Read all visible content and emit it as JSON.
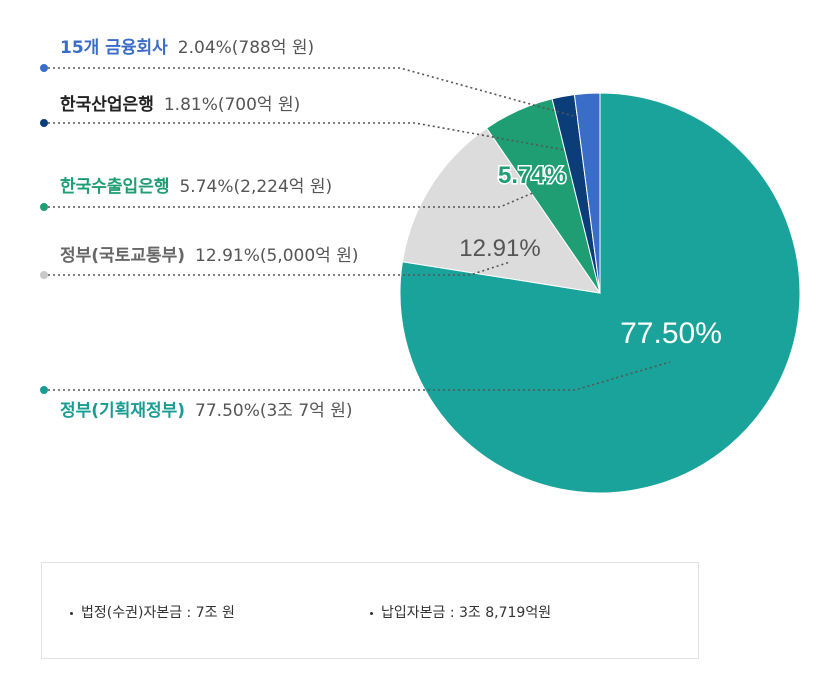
{
  "chart_data": {
    "type": "pie",
    "slices": [
      {
        "name": "정부(기획재정부)",
        "percent": 77.5,
        "value_text": "77.50%(3조 7억 원)",
        "pie_label": "77.50%",
        "color": "#1aa39a",
        "label_color": "#1a9c94",
        "dot_color": "#1a9c94"
      },
      {
        "name": "정부(국토교통부)",
        "percent": 12.91,
        "value_text": "12.91%(5,000억 원)",
        "pie_label": "12.91%",
        "color": "#dcdcdc",
        "label_color": "#666666",
        "dot_color": "#c8c8c8"
      },
      {
        "name": "한국수출입은행",
        "percent": 5.74,
        "value_text": "5.74%(2,224억 원)",
        "pie_label": "5.74%",
        "color": "#1e9e72",
        "label_color": "#1e9e72",
        "dot_color": "#1e9e72"
      },
      {
        "name": "한국산업은행",
        "percent": 1.81,
        "value_text": "1.81%(700억 원)",
        "pie_label": "",
        "color": "#0b3d78",
        "label_color": "#222222",
        "dot_color": "#0b3d78"
      },
      {
        "name": "15개 금융회사",
        "percent": 2.04,
        "value_text": "2.04%(788억 원)",
        "pie_label": "",
        "color": "#3a6dc8",
        "label_color": "#3a6dc8",
        "dot_color": "#3a6dc8"
      }
    ]
  },
  "info": {
    "legal_capital": "법정(수권)자본금 : 7조 원",
    "paid_capital": "납입자본금 : 3조 8,719억원"
  }
}
